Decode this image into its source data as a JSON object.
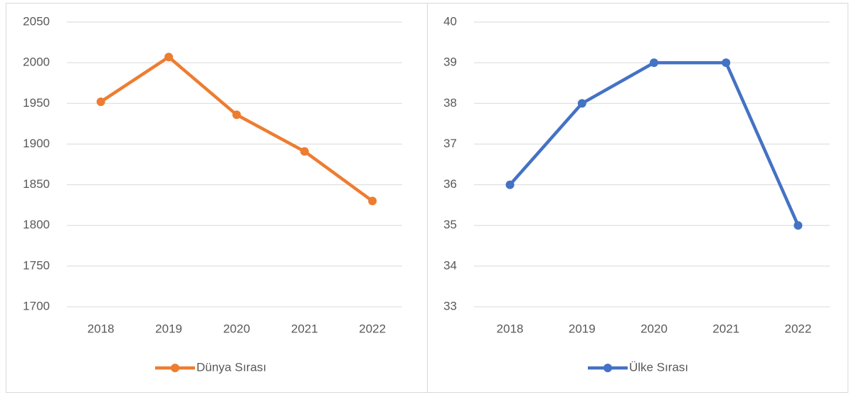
{
  "chart_data": [
    {
      "type": "line",
      "categories": [
        "2018",
        "2019",
        "2020",
        "2021",
        "2022"
      ],
      "series": [
        {
          "name": "Dünya Sırası",
          "color": "#ed7d31",
          "values": [
            1952,
            2007,
            1936,
            1891,
            1830
          ]
        }
      ],
      "ylim": [
        1700,
        2050
      ],
      "yticks": [
        1700,
        1750,
        1800,
        1850,
        1900,
        1950,
        2000,
        2050
      ],
      "grid": true
    },
    {
      "type": "line",
      "categories": [
        "2018",
        "2019",
        "2020",
        "2021",
        "2022"
      ],
      "series": [
        {
          "name": "Ülke Sırası",
          "color": "#4472c4",
          "values": [
            36,
            38,
            39,
            39,
            35
          ]
        }
      ],
      "ylim": [
        33,
        40
      ],
      "yticks": [
        33,
        34,
        35,
        36,
        37,
        38,
        39,
        40
      ],
      "grid": true
    }
  ]
}
